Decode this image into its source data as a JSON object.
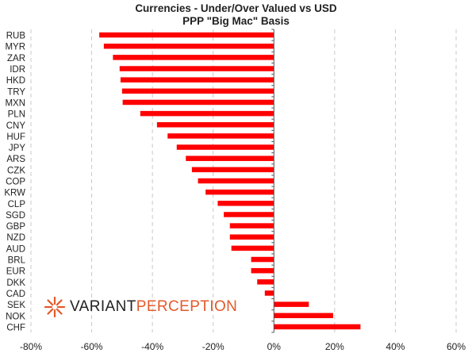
{
  "chart_data": {
    "type": "bar",
    "orientation": "horizontal",
    "title": "Currencies - Under/Over Valued vs USD",
    "subtitle": "PPP \"Big Mac\" Basis",
    "categories": [
      "RUB",
      "MYR",
      "ZAR",
      "IDR",
      "HKD",
      "TRY",
      "MXN",
      "PLN",
      "CNY",
      "HUF",
      "JPY",
      "ARS",
      "CZK",
      "COP",
      "KRW",
      "CLP",
      "SGD",
      "GBP",
      "NZD",
      "AUD",
      "BRL",
      "EUR",
      "DKK",
      "CAD",
      "SEK",
      "NOK",
      "CHF"
    ],
    "values": [
      -57.5,
      -56,
      -53,
      -50.8,
      -50.5,
      -50,
      -49.8,
      -44,
      -38.5,
      -35,
      -32,
      -29,
      -27,
      -25,
      -22.5,
      -18.5,
      -16.5,
      -14.5,
      -14.5,
      -14,
      -7.5,
      -7.5,
      -5.5,
      -3,
      11.5,
      19.5,
      28.5
    ],
    "xlim": [
      -80,
      60
    ],
    "xticks": [
      -80,
      -60,
      -40,
      -20,
      0,
      20,
      40,
      60
    ],
    "xtick_labels": [
      "-80%",
      "-60%",
      "-40%",
      "-20%",
      "0%",
      "20%",
      "40%",
      "60%"
    ],
    "grid": "vertical dashed",
    "legend": "none",
    "bar_color": "#ff0000"
  },
  "watermark": {
    "part1": "VARIANT",
    "part2": "PERCEPTION",
    "logo_icon": "starburst-icon",
    "accent_color": "#e35a2b"
  }
}
